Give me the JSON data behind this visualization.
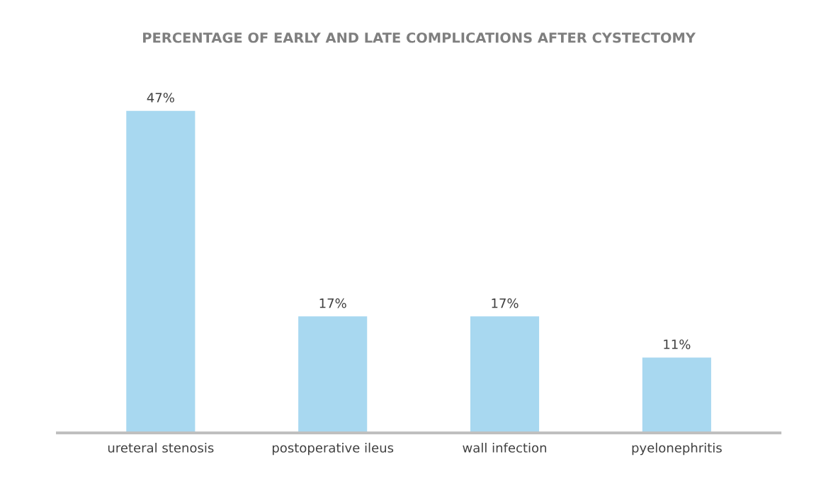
{
  "chart_data": {
    "type": "bar",
    "title": "PERCENTAGE OF EARLY AND LATE COMPLICATIONS AFTER CYSTECTOMY",
    "categories": [
      "ureteral stenosis",
      "postoperative ileus",
      "wall infection",
      "pyelonephritis"
    ],
    "values": [
      47,
      17,
      17,
      11
    ],
    "value_labels": [
      "47%",
      "17%",
      "17%",
      "11%"
    ],
    "color": "#a8d8f0",
    "grid": false
  }
}
